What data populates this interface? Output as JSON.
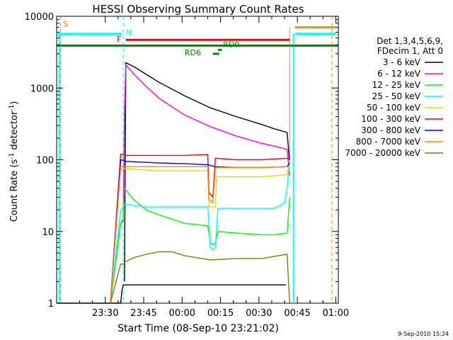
{
  "chart_data": {
    "type": "line",
    "title": "HESSI Observing Summary Count Rates",
    "xlabel": "Start Time (08-Sep-10 23:21:02)",
    "ylabel_main": "Count Rate (s",
    "ylabel_sup1": "-1",
    "ylabel_mid": " detector",
    "ylabel_sup2": "-1",
    "ylabel_end": ")",
    "y_scale": "log",
    "ylim": [
      1,
      10000
    ],
    "xlim_minutes": [
      -10,
      100
    ],
    "y_ticks": [
      {
        "v": 1,
        "label": "1"
      },
      {
        "v": 10,
        "label": "10"
      },
      {
        "v": 100,
        "label": "100"
      },
      {
        "v": 1000,
        "label": "1000"
      },
      {
        "v": 10000,
        "label": "10000"
      }
    ],
    "x_ticks": [
      {
        "v": 9,
        "label": "23:30"
      },
      {
        "v": 24,
        "label": "23:45"
      },
      {
        "v": 39,
        "label": "00:00"
      },
      {
        "v": 54,
        "label": "00:15"
      },
      {
        "v": 69,
        "label": "00:30"
      },
      {
        "v": 84,
        "label": "00:45"
      },
      {
        "v": 99,
        "label": "01:00"
      }
    ],
    "legend_header": [
      "Det 1,3,4,5,6,9,",
      "FDecim 1, Att 0"
    ],
    "legend_position": "right",
    "series": [
      {
        "name": "3 - 6 keV",
        "color": "#000000",
        "x": [
          -10,
          15,
          15.5,
          16,
          20,
          30,
          40,
          50,
          60,
          70,
          78,
          79.5
        ],
        "y": [
          1,
          1,
          1.5,
          1.8,
          1.8,
          1.8,
          1.8,
          1.8,
          1.8,
          1.8,
          1.8,
          1.8
        ],
        "x2": [
          16.5,
          17,
          20,
          25,
          30,
          40,
          50,
          60,
          70,
          75,
          80,
          81
        ],
        "y2": [
          2,
          2250,
          2000,
          1550,
          1200,
          780,
          530,
          400,
          310,
          270,
          240,
          90
        ]
      },
      {
        "name": "6 - 12 keV",
        "color": "#ff00ff",
        "x": [
          11,
          15,
          16,
          16.5,
          17,
          20,
          25,
          30,
          40,
          50,
          60,
          70,
          75,
          80,
          81
        ],
        "y": [
          1,
          13,
          14,
          500,
          2100,
          1600,
          1050,
          720,
          420,
          290,
          215,
          170,
          155,
          140,
          60
        ]
      },
      {
        "name": "12 - 25 keV",
        "color": "#00ff00",
        "x": [
          11,
          15,
          16,
          16.5,
          17,
          20,
          25,
          30,
          40,
          49,
          50,
          51,
          52,
          53,
          60,
          70,
          75,
          80,
          81
        ],
        "y": [
          1,
          13,
          15,
          40,
          38,
          28,
          20,
          17,
          13,
          12,
          7,
          6.5,
          7,
          10,
          9.5,
          9,
          9,
          9.5,
          30
        ]
      },
      {
        "name": "25 - 50 keV",
        "color": "#00ffff",
        "x": [
          11,
          15,
          16,
          16.5,
          17,
          20,
          25,
          30,
          40,
          49,
          50,
          51,
          52,
          53,
          60,
          70,
          75,
          79,
          80,
          81
        ],
        "y": [
          1,
          20,
          22,
          24,
          24,
          23,
          22,
          22,
          22,
          22,
          6,
          5.5,
          6,
          21,
          21,
          21,
          21,
          25,
          40,
          100
        ]
      },
      {
        "name": "50 - 100 keV",
        "color": "#dddd00",
        "x": [
          11,
          15,
          16,
          17,
          30,
          40,
          49,
          49.5,
          52,
          52.5,
          60,
          70,
          80,
          81
        ],
        "y": [
          1,
          75,
          75,
          75,
          70,
          70,
          70,
          22,
          22,
          58,
          58,
          58,
          62,
          100
        ]
      },
      {
        "name": "100 - 300 keV",
        "color": "#ff0000",
        "x": [
          11,
          15,
          16,
          17,
          30,
          40,
          49,
          49.5,
          51,
          52,
          52.5,
          60,
          70,
          80,
          81
        ],
        "y": [
          1,
          120,
          118,
          115,
          115,
          115,
          118,
          35,
          30,
          105,
          105,
          100,
          100,
          105,
          100
        ]
      },
      {
        "name": "300 - 800 keV",
        "color": "#0000ff",
        "x": [
          11,
          15,
          16,
          17,
          30,
          40,
          49,
          52,
          60,
          70,
          80,
          81
        ],
        "y": [
          1,
          100,
          98,
          95,
          90,
          88,
          85,
          80,
          78,
          78,
          80,
          90
        ]
      },
      {
        "name": "800 - 7000 keV",
        "color": "#ff8800",
        "x": [
          11,
          15,
          16,
          17,
          30,
          40,
          49,
          49.5,
          51,
          52,
          52.5,
          60,
          70,
          80,
          81
        ],
        "y": [
          1,
          80,
          80,
          80,
          80,
          80,
          80,
          28,
          25,
          78,
          78,
          78,
          78,
          80,
          80
        ]
      },
      {
        "name": "7000 - 20000 keV",
        "color": "#808000",
        "x": [
          11,
          15,
          16,
          17,
          20,
          25,
          30,
          35,
          40,
          45,
          50,
          55,
          60,
          70,
          80,
          81
        ],
        "y": [
          1,
          3.5,
          3.5,
          3.8,
          4.3,
          4.8,
          5.2,
          5.2,
          4.6,
          4.3,
          4.0,
          4.1,
          4.2,
          4.2,
          4.8,
          1
        ]
      }
    ],
    "flags": [
      {
        "label": "S",
        "color": "#ff8800",
        "x_start": -8,
        "x_end": -10
      },
      {
        "label": "N",
        "color": "#00ffff",
        "x_start": 16,
        "x_end": 16
      },
      {
        "label": "F",
        "color": "#ff0000",
        "x_start": 17,
        "x_end": 81
      },
      {
        "label": "RD0",
        "color": "#008800",
        "x_start": 54,
        "x_end": 54
      },
      {
        "label": "RD6",
        "color": "#008800",
        "x_start": 51,
        "x_end": 53
      }
    ],
    "timestamp": "9-Sep-2010 15:24"
  }
}
